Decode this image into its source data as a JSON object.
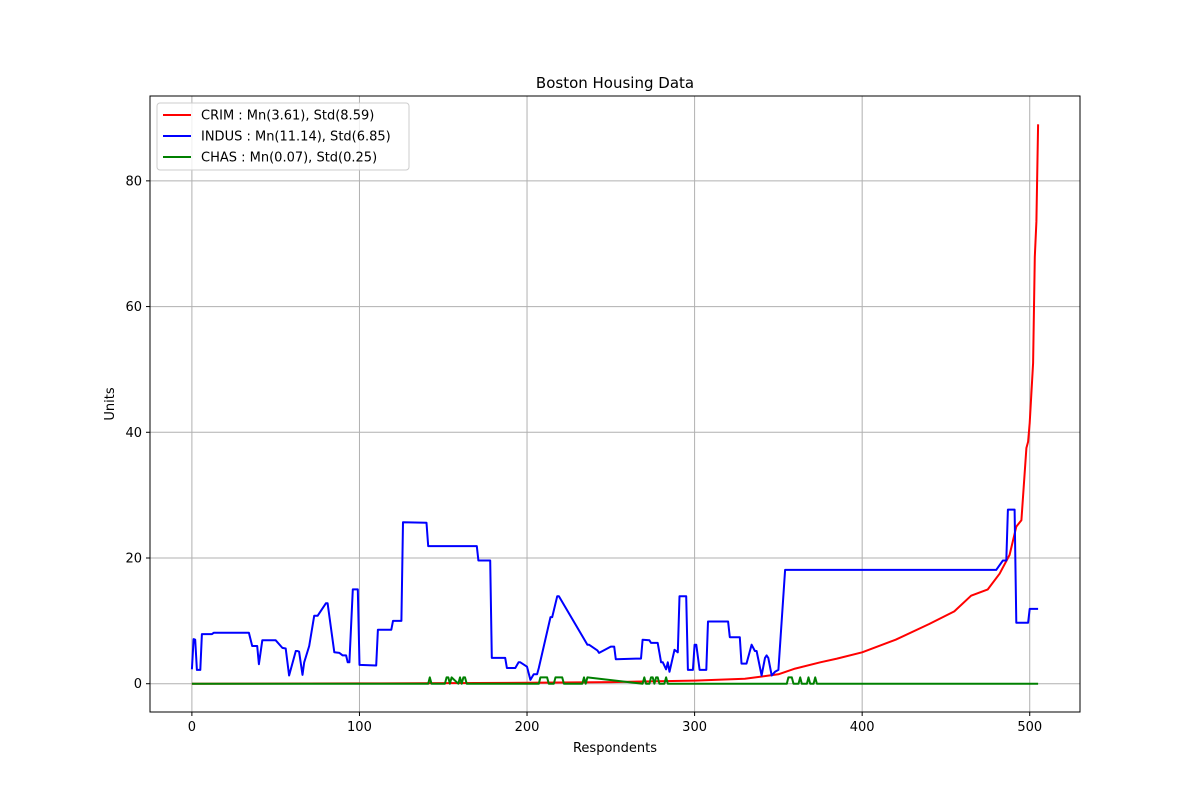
{
  "chart_data": {
    "type": "line",
    "title": "Boston Housing Data",
    "xlabel": "Respondents",
    "ylabel": "Units",
    "xlim": [
      -25,
      530
    ],
    "ylim": [
      -4.5,
      93.5
    ],
    "xticks": [
      0,
      100,
      200,
      300,
      400,
      500
    ],
    "yticks": [
      0,
      20,
      40,
      60,
      80
    ],
    "grid": true,
    "legend_position": "top-left",
    "series": [
      {
        "name": "CRIM : Mn(3.61), Std(8.59)",
        "color": "#ff0000",
        "x": [
          0,
          100,
          200,
          250,
          300,
          330,
          350,
          360,
          375,
          385,
          400,
          420,
          440,
          455,
          465,
          475,
          482,
          488,
          492,
          495,
          498,
          499,
          500,
          502,
          503,
          504,
          505
        ],
        "y": [
          0.006,
          0.05,
          0.15,
          0.25,
          0.5,
          0.8,
          1.5,
          2.4,
          3.4,
          4.0,
          5.0,
          7.0,
          9.5,
          11.5,
          14.0,
          15.0,
          17.5,
          20.5,
          25.0,
          26.0,
          37.5,
          38.5,
          41.5,
          51.0,
          67.9,
          73.5,
          89.0
        ]
      },
      {
        "name": "INDUS : Mn(11.14), Std(6.85)",
        "color": "#0000ff",
        "x": [
          0,
          1,
          2,
          3,
          5,
          6,
          8,
          12,
          13,
          20,
          34,
          36,
          39,
          40,
          42,
          49,
          50,
          54,
          56,
          58,
          62,
          63,
          64,
          66,
          67,
          70,
          73,
          75,
          80,
          81,
          85,
          88,
          90,
          92,
          93,
          94,
          96,
          99,
          100,
          110,
          111,
          119,
          120,
          125,
          126,
          140,
          141,
          170,
          171,
          178,
          179,
          187,
          188,
          193,
          195,
          196,
          200,
          202,
          204,
          206,
          207,
          214,
          215,
          218,
          219,
          236,
          237,
          242,
          243,
          250,
          252,
          253,
          266,
          268,
          269,
          273,
          274,
          278,
          280,
          281,
          283,
          284,
          285,
          288,
          290,
          291,
          295,
          296,
          299,
          300,
          301,
          303,
          307,
          308,
          320,
          321,
          327,
          328,
          331,
          334,
          336,
          337,
          340,
          342,
          343,
          344,
          346,
          348,
          350,
          354,
          356,
          357,
          480,
          484,
          486,
          487,
          490,
          491,
          492,
          493,
          499,
          500,
          504,
          505
        ],
        "y": [
          2.3,
          7.1,
          7.0,
          2.2,
          2.2,
          7.9,
          7.9,
          7.9,
          8.1,
          8.1,
          8.1,
          6.0,
          6.0,
          3.1,
          6.9,
          6.9,
          6.9,
          5.7,
          5.6,
          1.3,
          5.2,
          5.2,
          5.1,
          1.4,
          3.4,
          6.0,
          10.8,
          10.8,
          12.8,
          12.8,
          5.0,
          4.9,
          4.5,
          4.5,
          3.4,
          3.4,
          15.0,
          15.0,
          3.0,
          2.9,
          8.6,
          8.6,
          10.0,
          10.0,
          25.7,
          25.6,
          21.9,
          21.9,
          19.6,
          19.6,
          4.1,
          4.1,
          2.5,
          2.5,
          3.4,
          3.4,
          2.7,
          0.6,
          1.5,
          1.5,
          2.5,
          10.6,
          10.6,
          13.9,
          13.9,
          6.2,
          6.2,
          5.3,
          4.9,
          5.9,
          5.9,
          3.9,
          4.0,
          4.0,
          7.0,
          6.9,
          6.5,
          6.5,
          3.4,
          3.4,
          2.3,
          3.4,
          1.9,
          5.4,
          5.0,
          13.9,
          13.9,
          2.2,
          2.2,
          6.2,
          6.2,
          2.2,
          2.2,
          9.9,
          9.9,
          7.4,
          7.4,
          3.2,
          3.2,
          6.2,
          5.2,
          5.2,
          1.3,
          4.1,
          4.5,
          4.1,
          1.3,
          1.9,
          2.2,
          18.1,
          18.1,
          18.1,
          18.1,
          19.6,
          19.6,
          27.7,
          27.7,
          27.7,
          9.7,
          9.7,
          9.7,
          11.9,
          11.9,
          11.9
        ]
      },
      {
        "name": "CHAS : Mn(0.07), Std(0.25)",
        "color": "#008000",
        "x": [
          0,
          141,
          142,
          143,
          151,
          152,
          153,
          154,
          155,
          159,
          160,
          161,
          162,
          163,
          164,
          207,
          208,
          212,
          213,
          216,
          217,
          221,
          222,
          233,
          234,
          235,
          236,
          269,
          270,
          271,
          273,
          274,
          275,
          276,
          277,
          278,
          279,
          282,
          283,
          284,
          355,
          356,
          358,
          359,
          362,
          363,
          364,
          367,
          368,
          369,
          371,
          372,
          373,
          505
        ],
        "y": [
          0,
          0,
          1,
          0,
          0,
          1,
          1,
          0,
          1,
          0,
          1,
          0,
          1,
          1,
          0,
          0,
          1,
          1,
          0,
          0,
          1,
          1,
          0,
          0,
          1,
          0,
          1,
          0,
          1,
          0,
          0,
          1,
          1,
          0,
          1,
          1,
          0,
          0,
          1,
          0,
          0,
          1,
          1,
          0,
          0,
          1,
          0,
          0,
          1,
          0,
          0,
          1,
          0,
          0
        ]
      }
    ]
  }
}
